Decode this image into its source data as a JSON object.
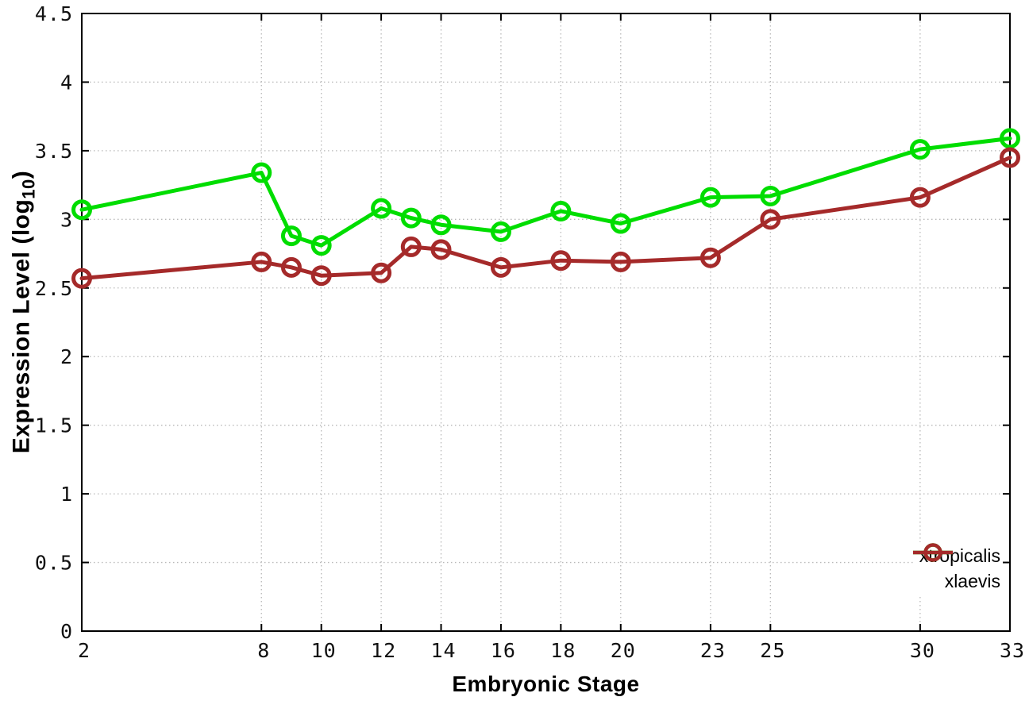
{
  "figure": {
    "xlabel": "Embryonic Stage",
    "ylabel_pre": "Expression Level (log",
    "ylabel_sub": "10",
    "ylabel_post": ")"
  },
  "chart_data": {
    "type": "line",
    "title": "",
    "xlabel": "Embryonic Stage",
    "ylabel": "Expression Level (log10)",
    "xlim": [
      2,
      33
    ],
    "ylim": [
      0,
      4.5
    ],
    "grid": true,
    "legend_position": "bottom-right",
    "x_ticks": [
      2,
      8,
      10,
      12,
      14,
      16,
      18,
      20,
      23,
      25,
      30,
      33
    ],
    "y_ticks": [
      0,
      0.5,
      1,
      1.5,
      2,
      2.5,
      3,
      3.5,
      4,
      4.5
    ],
    "x": [
      2,
      8,
      9,
      10,
      12,
      13,
      14,
      16,
      18,
      20,
      23,
      25,
      30,
      33
    ],
    "series": [
      {
        "name": "xtropicalis",
        "color": "#00dd00",
        "values": [
          3.07,
          3.34,
          2.88,
          2.81,
          3.08,
          3.01,
          2.96,
          2.91,
          3.06,
          2.97,
          3.16,
          3.17,
          3.51,
          3.59
        ]
      },
      {
        "name": "xlaevis",
        "color": "#a52a2a",
        "values": [
          2.57,
          2.69,
          2.65,
          2.59,
          2.61,
          2.8,
          2.78,
          2.65,
          2.7,
          2.69,
          2.72,
          3.0,
          3.16,
          3.45
        ]
      }
    ],
    "style": {
      "grid_color": "#b8b8b8",
      "axis_color": "#000000",
      "line_width": 5,
      "marker_radius": 10.5,
      "marker_stroke": 5
    }
  }
}
